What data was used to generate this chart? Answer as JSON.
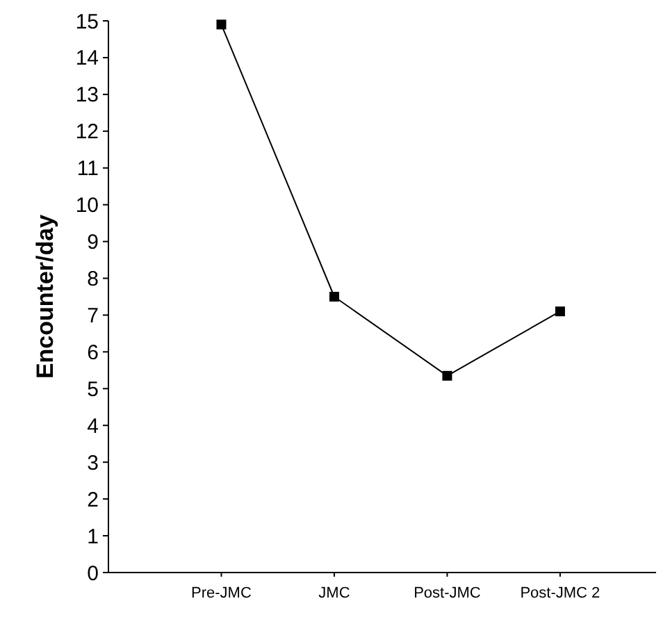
{
  "chart_data": {
    "type": "line",
    "ylabel": "Encounter/day",
    "categories": [
      "Pre-JMC",
      "JMC",
      "Post-JMC",
      "Post-JMC 2"
    ],
    "series": [
      {
        "color": "#000000",
        "values": [
          14.9,
          7.5,
          5.35,
          7.1
        ]
      }
    ],
    "ylim": [
      0,
      15
    ],
    "yticks": [
      0,
      1,
      2,
      3,
      4,
      5,
      6,
      7,
      8,
      9,
      10,
      11,
      12,
      13,
      14,
      15
    ],
    "grid": false,
    "marker": "square",
    "line_style": "solid"
  }
}
